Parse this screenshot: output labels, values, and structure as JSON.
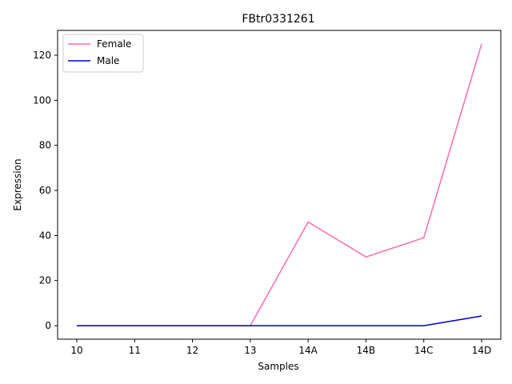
{
  "chart_data": {
    "type": "line",
    "title": "FBtr0331261",
    "xlabel": "Samples",
    "ylabel": "Expression",
    "categories": [
      "10",
      "11",
      "12",
      "13",
      "14A",
      "14B",
      "14C",
      "14D"
    ],
    "series": [
      {
        "name": "Female",
        "color": "#ff69b4",
        "values": [
          0,
          0,
          0,
          0,
          46,
          30.5,
          39,
          125
        ]
      },
      {
        "name": "Male",
        "color": "#0000cd",
        "values": [
          0,
          0,
          0,
          0,
          0,
          0,
          0,
          4.3
        ]
      }
    ],
    "ylim": [
      -6,
      131
    ],
    "yticks": [
      0,
      20,
      40,
      60,
      80,
      100,
      120
    ],
    "grid": false,
    "legend": "top-left"
  }
}
